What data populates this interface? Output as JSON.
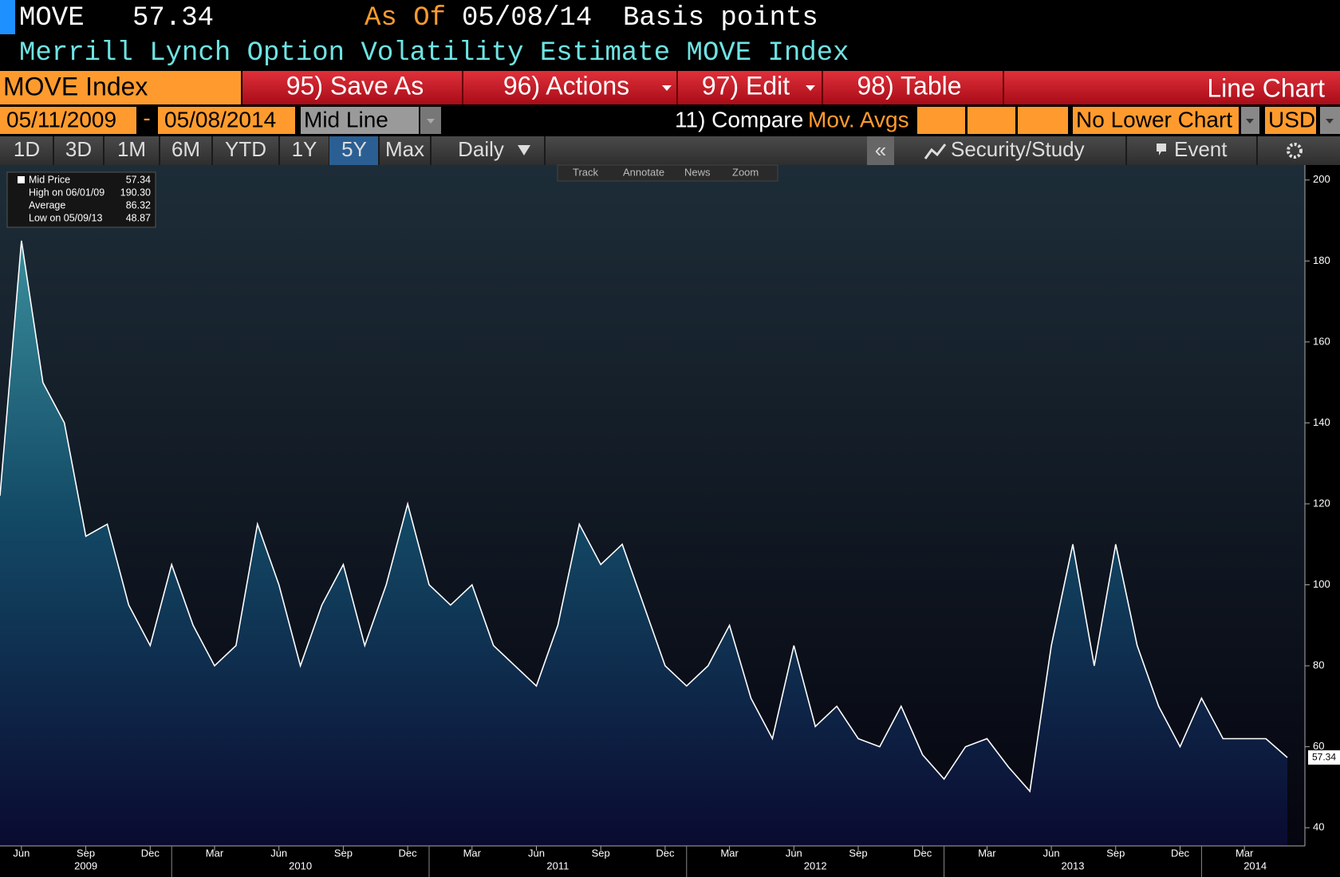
{
  "header": {
    "ticker": "MOVE",
    "last": 57.34,
    "as_of_label": "As Of",
    "as_of": "05/08/14",
    "units": "Basis points",
    "title": "Merrill Lynch Option Volatility Estimate MOVE Index"
  },
  "toolbar": {
    "security": "MOVE Index",
    "save": "95) Save As",
    "actions": "96) Actions",
    "edit": "97) Edit",
    "table": "98) Table",
    "chart_type": "Line Chart"
  },
  "range_bar": {
    "start": "05/11/2009",
    "dash": "-",
    "end": "05/08/2014",
    "line_type": "Mid Line",
    "compare": "11) Compare",
    "mov_avgs": "Mov. Avgs",
    "lower_chart": "No Lower Chart",
    "currency": "USD"
  },
  "tabs": {
    "periods": [
      "1D",
      "3D",
      "1M",
      "6M",
      "YTD",
      "1Y",
      "5Y",
      "Max"
    ],
    "selected": "5Y",
    "frequency": "Daily",
    "collapse": "«",
    "study": "Security/Study",
    "event": "Event"
  },
  "mini_toolbar": [
    "Track",
    "Annotate",
    "News",
    "Zoom"
  ],
  "chart_data": {
    "type": "area",
    "x": [
      "2009-05",
      "2009-06",
      "2009-07",
      "2009-08",
      "2009-09",
      "2009-10",
      "2009-11",
      "2009-12",
      "2010-01",
      "2010-02",
      "2010-03",
      "2010-04",
      "2010-05",
      "2010-06",
      "2010-07",
      "2010-08",
      "2010-09",
      "2010-10",
      "2010-11",
      "2010-12",
      "2011-01",
      "2011-02",
      "2011-03",
      "2011-04",
      "2011-05",
      "2011-06",
      "2011-07",
      "2011-08",
      "2011-09",
      "2011-10",
      "2011-11",
      "2011-12",
      "2012-01",
      "2012-02",
      "2012-03",
      "2012-04",
      "2012-05",
      "2012-06",
      "2012-07",
      "2012-08",
      "2012-09",
      "2012-10",
      "2012-11",
      "2012-12",
      "2013-01",
      "2013-02",
      "2013-03",
      "2013-04",
      "2013-05",
      "2013-06",
      "2013-07",
      "2013-08",
      "2013-09",
      "2013-10",
      "2013-11",
      "2013-12",
      "2014-01",
      "2014-02",
      "2014-03",
      "2014-04",
      "2014-05"
    ],
    "series": [
      {
        "name": "Mid Price",
        "color": "#ffffff",
        "values": [
          122,
          185,
          150,
          140,
          112,
          115,
          95,
          85,
          105,
          90,
          80,
          85,
          115,
          100,
          80,
          95,
          105,
          85,
          100,
          120,
          100,
          95,
          100,
          85,
          80,
          75,
          90,
          115,
          105,
          110,
          95,
          80,
          75,
          80,
          90,
          72,
          62,
          85,
          65,
          70,
          62,
          60,
          70,
          58,
          52,
          60,
          62,
          55,
          49,
          85,
          110,
          80,
          110,
          85,
          70,
          60,
          72,
          62,
          62,
          62,
          57.34
        ]
      }
    ],
    "legend": [
      {
        "name": "Mid Price",
        "value": 57.34,
        "label": "57.34"
      },
      {
        "name": "High on 06/01/09",
        "value": 190.3,
        "label": "190.30"
      },
      {
        "name": "Average",
        "value": 86.32,
        "label": "86.32"
      },
      {
        "name": "Low on 05/09/13",
        "value": 48.87,
        "label": "48.87"
      }
    ],
    "last_tag": 57.34,
    "ylim": [
      35.5,
      203.7
    ],
    "yticks": [
      40,
      60,
      80,
      100,
      120,
      140,
      160,
      180,
      200
    ],
    "xticks": [
      {
        "value": "2009-06",
        "label": "Jun"
      },
      {
        "value": "2009-09",
        "label": "Sep"
      },
      {
        "value": "2009-12",
        "label": "Dec"
      },
      {
        "value": "2010-03",
        "label": "Mar"
      },
      {
        "value": "2010-06",
        "label": "Jun"
      },
      {
        "value": "2010-09",
        "label": "Sep"
      },
      {
        "value": "2010-12",
        "label": "Dec"
      },
      {
        "value": "2011-03",
        "label": "Mar"
      },
      {
        "value": "2011-06",
        "label": "Jun"
      },
      {
        "value": "2011-09",
        "label": "Sep"
      },
      {
        "value": "2011-12",
        "label": "Dec"
      },
      {
        "value": "2012-03",
        "label": "Mar"
      },
      {
        "value": "2012-06",
        "label": "Jun"
      },
      {
        "value": "2012-09",
        "label": "Sep"
      },
      {
        "value": "2012-12",
        "label": "Dec"
      },
      {
        "value": "2013-03",
        "label": "Mar"
      },
      {
        "value": "2013-06",
        "label": "Jun"
      },
      {
        "value": "2013-09",
        "label": "Sep"
      },
      {
        "value": "2013-12",
        "label": "Dec"
      },
      {
        "value": "2014-03",
        "label": "Mar"
      }
    ],
    "years": [
      2009,
      2010,
      2011,
      2012,
      2013,
      2014
    ]
  }
}
